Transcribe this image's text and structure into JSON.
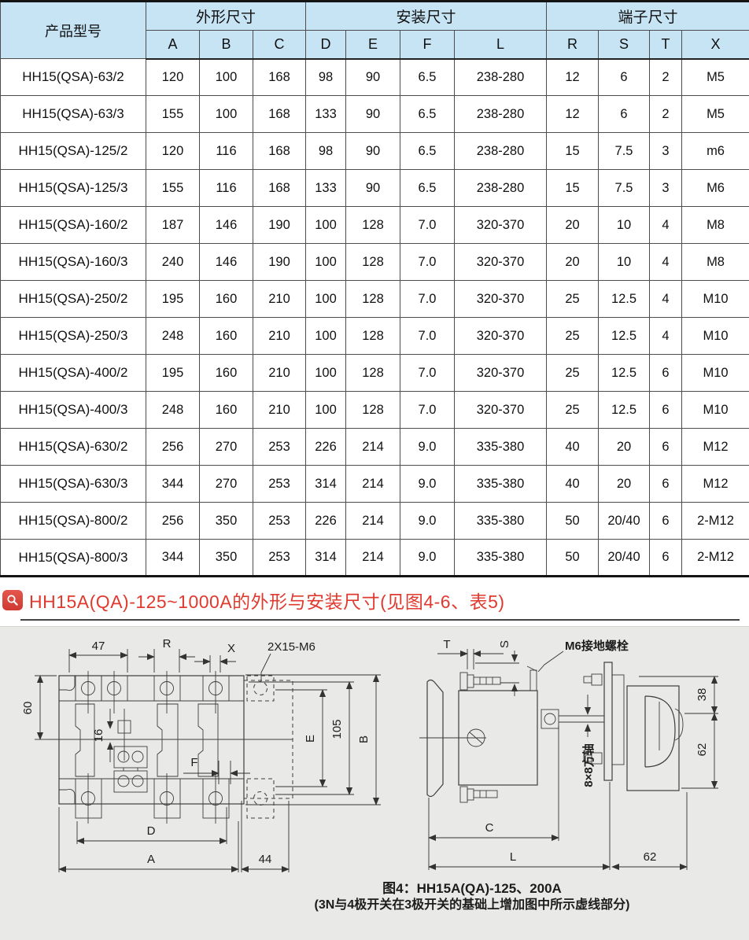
{
  "table": {
    "product_model_header": "产品型号",
    "groups": [
      {
        "label": "外形尺寸",
        "cols": [
          "A",
          "B",
          "C"
        ]
      },
      {
        "label": "安装尺寸",
        "cols": [
          "D",
          "E",
          "F",
          "L"
        ]
      },
      {
        "label": "端子尺寸",
        "cols": [
          "R",
          "S",
          "T",
          "X"
        ]
      }
    ],
    "rows": [
      [
        "HH15(QSA)-63/2",
        "120",
        "100",
        "168",
        "98",
        "90",
        "6.5",
        "238-280",
        "12",
        "6",
        "2",
        "M5"
      ],
      [
        "HH15(QSA)-63/3",
        "155",
        "100",
        "168",
        "133",
        "90",
        "6.5",
        "238-280",
        "12",
        "6",
        "2",
        "M5"
      ],
      [
        "HH15(QSA)-125/2",
        "120",
        "116",
        "168",
        "98",
        "90",
        "6.5",
        "238-280",
        "15",
        "7.5",
        "3",
        "m6"
      ],
      [
        "HH15(QSA)-125/3",
        "155",
        "116",
        "168",
        "133",
        "90",
        "6.5",
        "238-280",
        "15",
        "7.5",
        "3",
        "M6"
      ],
      [
        "HH15(QSA)-160/2",
        "187",
        "146",
        "190",
        "100",
        "128",
        "7.0",
        "320-370",
        "20",
        "10",
        "4",
        "M8"
      ],
      [
        "HH15(QSA)-160/3",
        "240",
        "146",
        "190",
        "100",
        "128",
        "7.0",
        "320-370",
        "20",
        "10",
        "4",
        "M8"
      ],
      [
        "HH15(QSA)-250/2",
        "195",
        "160",
        "210",
        "100",
        "128",
        "7.0",
        "320-370",
        "25",
        "12.5",
        "4",
        "M10"
      ],
      [
        "HH15(QSA)-250/3",
        "248",
        "160",
        "210",
        "100",
        "128",
        "7.0",
        "320-370",
        "25",
        "12.5",
        "4",
        "M10"
      ],
      [
        "HH15(QSA)-400/2",
        "195",
        "160",
        "210",
        "100",
        "128",
        "7.0",
        "320-370",
        "25",
        "12.5",
        "6",
        "M10"
      ],
      [
        "HH15(QSA)-400/3",
        "248",
        "160",
        "210",
        "100",
        "128",
        "7.0",
        "320-370",
        "25",
        "12.5",
        "6",
        "M10"
      ],
      [
        "HH15(QSA)-630/2",
        "256",
        "270",
        "253",
        "226",
        "214",
        "9.0",
        "335-380",
        "40",
        "20",
        "6",
        "M12"
      ],
      [
        "HH15(QSA)-630/3",
        "344",
        "270",
        "253",
        "314",
        "214",
        "9.0",
        "335-380",
        "40",
        "20",
        "6",
        "M12"
      ],
      [
        "HH15(QSA)-800/2",
        "256",
        "350",
        "253",
        "226",
        "214",
        "9.0",
        "335-380",
        "50",
        "20/40",
        "6",
        "2-M12"
      ],
      [
        "HH15(QSA)-800/3",
        "344",
        "350",
        "253",
        "314",
        "214",
        "9.0",
        "335-380",
        "50",
        "20/40",
        "6",
        "2-M12"
      ]
    ]
  },
  "section_title": "HH15A(QA)-125~1000A的外形与安装尺寸(见图4-6、表5)",
  "section_icon": "magnifier",
  "figure": {
    "front_view": {
      "dim_47": "47",
      "dim_R": "R",
      "dim_X": "X",
      "callout_2x15_m6": "2X15-M6",
      "dim_60": "60",
      "dim_16": "16",
      "dim_F": "F",
      "dim_E": "E",
      "dim_105": "105",
      "dim_B": "B",
      "dim_D": "D",
      "dim_A": "A",
      "dim_44": "44"
    },
    "side_view": {
      "dim_T": "T",
      "dim_S": "S",
      "ground_label": "M6接地螺栓",
      "shaft_label": "8×8方轴",
      "dim_38": "38",
      "dim_62_right": "62",
      "dim_C": "C",
      "dim_L": "L",
      "dim_62_bottom": "62"
    },
    "caption_line1": "图4：HH15A(QA)-125、200A",
    "caption_line2": "(3N与4极开关在3极开关的基础上增加图中所示虚线部分)"
  },
  "colors": {
    "header_bg": "#c7e4f5",
    "accent_red": "#e03a2f",
    "line": "#3d3d3d",
    "panel_bg": "#e9e9e7"
  }
}
